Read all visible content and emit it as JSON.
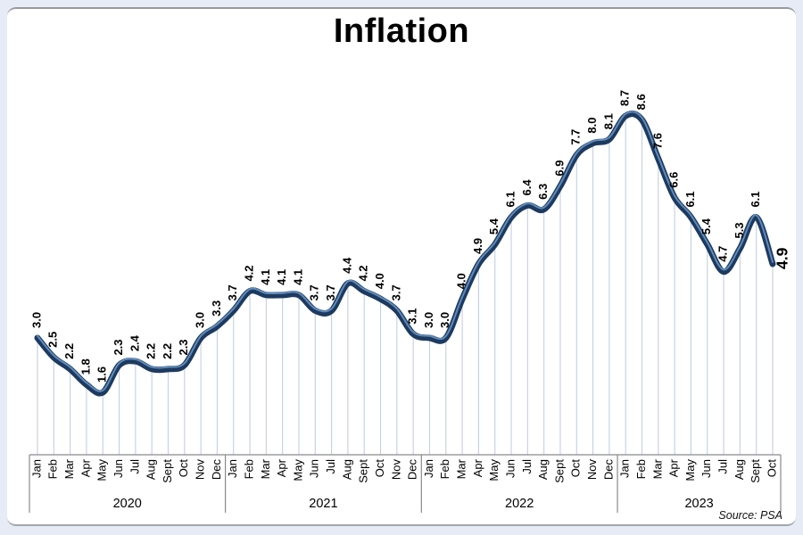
{
  "title": "Inflation",
  "source_note": "Source: PSA",
  "colors": {
    "line": "#1d3a5f",
    "line_highlight": "#648fc1",
    "drop_line": "#c4cfe2",
    "axis": "#8a8a8a",
    "label": "#000000",
    "panel_bg": "#ffffff",
    "frame_bg": "#e6ebf6"
  },
  "chart_data": {
    "type": "line",
    "title": "Inflation",
    "series_name": "Inflation rate (%)",
    "legend": "none",
    "grid": "drop-lines",
    "ylim": [
      0,
      9.5
    ],
    "value_label_decimals": 1,
    "highlight_last_point": true,
    "groups": [
      {
        "year": "2020",
        "months": [
          "Jan",
          "Feb",
          "Mar",
          "Apr",
          "May",
          "Jun",
          "Jul",
          "Aug",
          "Sept",
          "Oct",
          "Nov",
          "Dec"
        ],
        "values": [
          3.0,
          2.5,
          2.2,
          1.8,
          1.6,
          2.3,
          2.4,
          2.2,
          2.2,
          2.3,
          3.0,
          3.3
        ]
      },
      {
        "year": "2021",
        "months": [
          "Jan",
          "Feb",
          "Mar",
          "Apr",
          "May",
          "Jun",
          "Jul",
          "Aug",
          "Sept",
          "Oct",
          "Nov",
          "Dec"
        ],
        "values": [
          3.7,
          4.2,
          4.1,
          4.1,
          4.1,
          3.7,
          3.7,
          4.4,
          4.2,
          4.0,
          3.7,
          3.1
        ]
      },
      {
        "year": "2022",
        "months": [
          "Jan",
          "Feb",
          "Mar",
          "Apr",
          "May",
          "Jun",
          "Jul",
          "Aug",
          "Sept",
          "Oct",
          "Nov",
          "Dec"
        ],
        "values": [
          3.0,
          3.0,
          4.0,
          4.9,
          5.4,
          6.1,
          6.4,
          6.3,
          6.9,
          7.7,
          8.0,
          8.1
        ]
      },
      {
        "year": "2023",
        "months": [
          "Jan",
          "Feb",
          "Mar",
          "Apr",
          "May",
          "Jun",
          "Jul",
          "Aug",
          "Sept",
          "Oct"
        ],
        "values": [
          8.7,
          8.6,
          7.6,
          6.6,
          6.1,
          5.4,
          4.7,
          5.3,
          6.1,
          4.9
        ]
      }
    ]
  }
}
